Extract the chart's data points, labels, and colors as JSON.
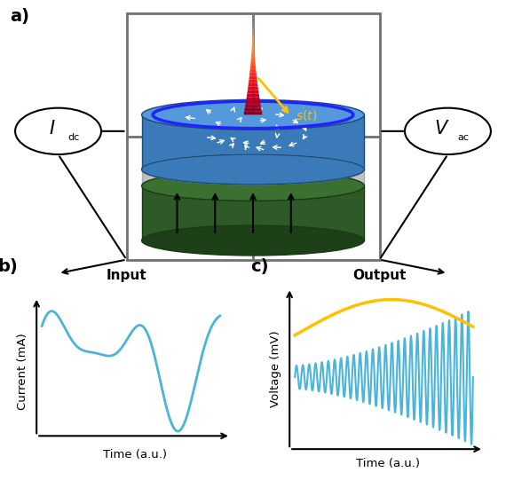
{
  "panel_a_label": "a)",
  "panel_b_label": "b)",
  "panel_c_label": "c)",
  "title_b": "Input",
  "title_c": "Output",
  "xlabel_b": "Time (a.u.)",
  "xlabel_c": "Time (a.u.)",
  "ylabel_b": "Current (mA)",
  "ylabel_c": "Voltage (mV)",
  "curve_color_blue": "#4AB4D9",
  "curve_color_yellow": "#FFC000",
  "box_color": "#707070",
  "background_color": "#ffffff",
  "disk_top_color": "#4a8acc",
  "disk_side_color": "#3a7ab8",
  "disk_bottom_color": "#2D5A27",
  "disk_bottom_top_color": "#3a7030",
  "disk_spacer_color": "#C8C8C8",
  "spike_cmap": "YlOrRd_r",
  "arrow_color_up": "black",
  "vortex_arrow_color": "white",
  "vortex_circle_color": "#2222ff",
  "s_arrow_color": "#FFC000",
  "s_label_color": "#FFC000"
}
